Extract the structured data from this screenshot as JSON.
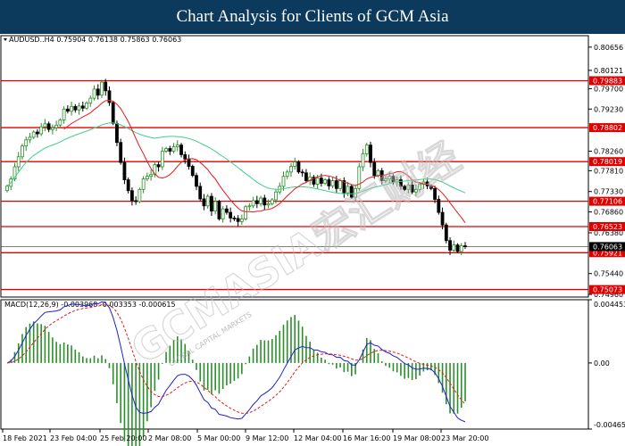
{
  "header": {
    "title": "Chart Analysis for Clients of GCM Asia"
  },
  "watermark": {
    "main": "GCMASIA宏汇财经",
    "sub": "GLOBAL CAPITAL MARKETS"
  },
  "chart_data": [
    {
      "type": "candlestick",
      "symbol_info": "AUDUSD..H4  0.75904 0.76138 0.75863 0.76063",
      "y_ticks": [
        0.80656,
        0.80121,
        0.797,
        0.7923,
        0.7826,
        0.7781,
        0.7733,
        0.7686,
        0.7638,
        0.7544,
        0.7496
      ],
      "ylim": [
        0.749,
        0.8092
      ],
      "x_ticks": [
        "18 Feb 2021",
        "23 Feb 04:00",
        "25 Feb 20:00",
        "2 Mar 08:00",
        "5 Mar 00:00",
        "9 Mar 12:00",
        "12 Mar 04:00",
        "16 Mar 16:00",
        "19 Mar 08:00",
        "23 Mar 20:00"
      ],
      "levels": [
        {
          "value": 0.79883,
          "label": "0.79883"
        },
        {
          "value": 0.78802,
          "label": "0.78802"
        },
        {
          "value": 0.78019,
          "label": "0.78019"
        },
        {
          "value": 0.77106,
          "label": "0.77106"
        },
        {
          "value": 0.76523,
          "label": "0.76523"
        },
        {
          "value": 0.75921,
          "label": "0.75921"
        },
        {
          "value": 0.75073,
          "label": "0.75073"
        }
      ],
      "current_price": {
        "value": 0.76063,
        "label": "0.76063"
      },
      "closes": [
        0.7745,
        0.7762,
        0.779,
        0.7813,
        0.7838,
        0.7852,
        0.7858,
        0.787,
        0.7866,
        0.7882,
        0.7889,
        0.7876,
        0.788,
        0.7886,
        0.7898,
        0.7923,
        0.7918,
        0.7929,
        0.7921,
        0.793,
        0.7925,
        0.7937,
        0.7948,
        0.7969,
        0.7955,
        0.7985,
        0.7965,
        0.7938,
        0.789,
        0.7846,
        0.78,
        0.776,
        0.7735,
        0.7712,
        0.771,
        0.7738,
        0.7762,
        0.7768,
        0.7772,
        0.7795,
        0.779,
        0.7826,
        0.7832,
        0.7826,
        0.7836,
        0.784,
        0.7818,
        0.7808,
        0.7791,
        0.777,
        0.7745,
        0.7716,
        0.77,
        0.7722,
        0.7688,
        0.771,
        0.767,
        0.7693,
        0.7685,
        0.7672,
        0.7671,
        0.7664,
        0.767,
        0.7698,
        0.77,
        0.7712,
        0.7705,
        0.7718,
        0.7702,
        0.7705,
        0.7714,
        0.7732,
        0.7745,
        0.7768,
        0.7778,
        0.7791,
        0.7801,
        0.7778,
        0.7776,
        0.7758,
        0.7766,
        0.775,
        0.7764,
        0.7752,
        0.776,
        0.7746,
        0.7758,
        0.774,
        0.7758,
        0.773,
        0.7745,
        0.772,
        0.774,
        0.779,
        0.782,
        0.784,
        0.78,
        0.777,
        0.7781,
        0.7758,
        0.7762,
        0.7768,
        0.7755,
        0.776,
        0.7745,
        0.7738,
        0.7748,
        0.7732,
        0.7738,
        0.775,
        0.7755,
        0.7746,
        0.774,
        0.7715,
        0.7685,
        0.7656,
        0.762,
        0.7598,
        0.761,
        0.7595,
        0.7608,
        0.7606
      ],
      "ma_fast_name": "",
      "ma_slow_name": "",
      "ma_fast_color": "#e31b1b",
      "ma_slow_color": "#3fd08a",
      "candle_up_color": "#2a8f2a",
      "candle_down_color": "#000000"
    },
    {
      "type": "macd",
      "label": "MACD(12,26,9) -0.003968 -0.003353 -0.000615",
      "y_ticks": [
        "0.004453",
        "0.00",
        "-0.004653"
      ],
      "ylim": [
        -0.004653,
        0.004453
      ],
      "hist_color": "#2a8f2a",
      "macd_color": "#1f1fd6",
      "signal_color": "#e31b1b"
    }
  ]
}
